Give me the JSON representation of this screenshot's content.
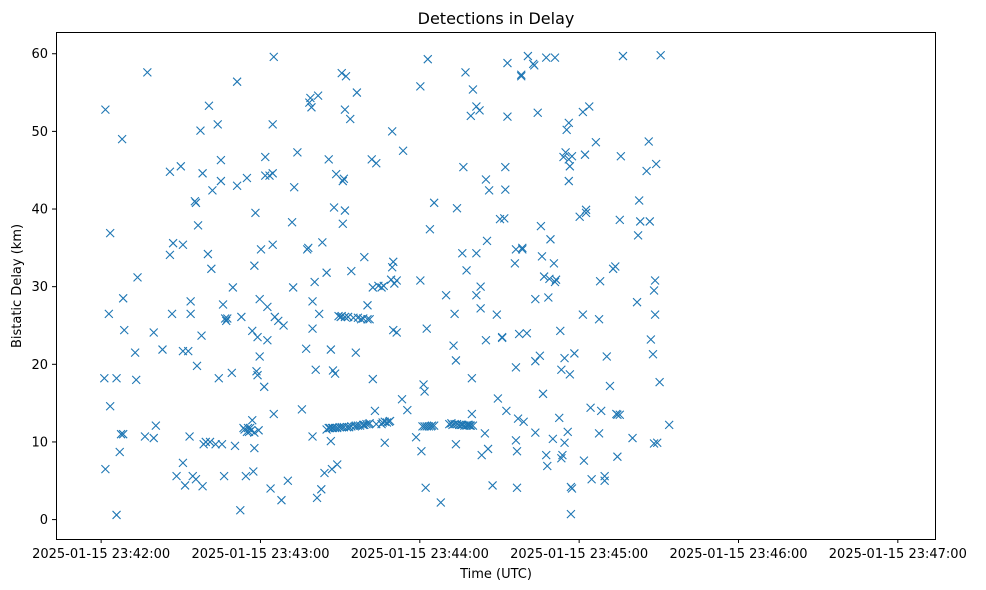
{
  "chart_data": {
    "type": "scatter",
    "title": "Detections in Delay",
    "xlabel": "Time (UTC)",
    "ylabel": "Bistatic Delay (km)",
    "x_unit": "seconds after 2025-01-15 23:42:00",
    "xlim": [
      -17,
      314
    ],
    "ylim": [
      -2.5,
      62.8
    ],
    "grid": false,
    "marker": "x",
    "color": "#1f77b4",
    "xticks": [
      {
        "value": 0,
        "label": "2025-01-15 23:42:00"
      },
      {
        "value": 60,
        "label": "2025-01-15 23:43:00"
      },
      {
        "value": 120,
        "label": "2025-01-15 23:44:00"
      },
      {
        "value": 180,
        "label": "2025-01-15 23:45:00"
      },
      {
        "value": 240,
        "label": "2025-01-15 23:46:00"
      },
      {
        "value": 300,
        "label": "2025-01-15 23:47:00"
      }
    ],
    "yticks": [
      0,
      10,
      20,
      30,
      40,
      50,
      60
    ],
    "points": [
      [
        1.6,
        52.8
      ],
      [
        1.2,
        18.2
      ],
      [
        1.6,
        6.5
      ],
      [
        2.9,
        26.5
      ],
      [
        3.4,
        14.6
      ],
      [
        3.4,
        36.9
      ],
      [
        5.8,
        18.2
      ],
      [
        5.8,
        0.6
      ],
      [
        7.0,
        8.7
      ],
      [
        7.5,
        11.0
      ],
      [
        7.9,
        49.0
      ],
      [
        8.3,
        28.5
      ],
      [
        8.3,
        11.0
      ],
      [
        8.7,
        24.4
      ],
      [
        12.8,
        21.5
      ],
      [
        13.2,
        18.0
      ],
      [
        13.7,
        31.2
      ],
      [
        16.5,
        10.7
      ],
      [
        17.4,
        57.6
      ],
      [
        19.8,
        24.1
      ],
      [
        19.8,
        10.5
      ],
      [
        20.6,
        12.1
      ],
      [
        23.1,
        21.9
      ],
      [
        25.9,
        34.1
      ],
      [
        25.9,
        44.8
      ],
      [
        26.7,
        26.5
      ],
      [
        27.1,
        35.6
      ],
      [
        28.4,
        5.6
      ],
      [
        30.0,
        45.5
      ],
      [
        30.8,
        7.3
      ],
      [
        30.8,
        35.4
      ],
      [
        30.8,
        21.7
      ],
      [
        31.6,
        4.4
      ],
      [
        32.8,
        21.7
      ],
      [
        33.3,
        10.7
      ],
      [
        33.7,
        26.5
      ],
      [
        33.7,
        28.1
      ],
      [
        34.5,
        5.6
      ],
      [
        35.3,
        41.0
      ],
      [
        35.7,
        40.8
      ],
      [
        35.7,
        5.2
      ],
      [
        36.1,
        19.8
      ],
      [
        36.5,
        37.9
      ],
      [
        37.4,
        50.1
      ],
      [
        37.8,
        23.7
      ],
      [
        38.2,
        44.6
      ],
      [
        38.2,
        4.3
      ],
      [
        38.6,
        9.7
      ],
      [
        39.4,
        10.0
      ],
      [
        40.2,
        34.2
      ],
      [
        40.6,
        53.3
      ],
      [
        41.0,
        10.0
      ],
      [
        41.5,
        32.3
      ],
      [
        41.9,
        42.4
      ],
      [
        43.1,
        9.7
      ],
      [
        43.9,
        50.9
      ],
      [
        44.3,
        18.2
      ],
      [
        45.1,
        46.3
      ],
      [
        45.1,
        43.6
      ],
      [
        45.5,
        9.7
      ],
      [
        45.9,
        27.7
      ],
      [
        46.3,
        5.6
      ],
      [
        46.7,
        25.9
      ],
      [
        47.1,
        25.6
      ],
      [
        47.5,
        25.9
      ],
      [
        49.2,
        18.9
      ],
      [
        49.6,
        29.9
      ],
      [
        50.4,
        9.5
      ],
      [
        51.2,
        43.0
      ],
      [
        51.2,
        56.4
      ],
      [
        52.4,
        1.2
      ],
      [
        52.8,
        26.1
      ],
      [
        53.6,
        11.8
      ],
      [
        54.0,
        11.6
      ],
      [
        54.5,
        5.6
      ],
      [
        54.9,
        44.0
      ],
      [
        54.9,
        11.3
      ],
      [
        55.3,
        11.8
      ],
      [
        55.7,
        11.3
      ],
      [
        56.1,
        11.8
      ],
      [
        56.5,
        11.5
      ],
      [
        56.9,
        12.8
      ],
      [
        56.9,
        24.3
      ],
      [
        57.3,
        6.2
      ],
      [
        57.7,
        32.7
      ],
      [
        57.7,
        11.2
      ],
      [
        57.7,
        9.2
      ],
      [
        58.1,
        39.5
      ],
      [
        58.5,
        19.1
      ],
      [
        58.9,
        23.5
      ],
      [
        58.9,
        18.6
      ],
      [
        59.3,
        11.5
      ],
      [
        59.7,
        21.0
      ],
      [
        59.7,
        28.4
      ],
      [
        60.2,
        34.8
      ],
      [
        61.4,
        17.1
      ],
      [
        61.8,
        46.7
      ],
      [
        61.8,
        44.3
      ],
      [
        62.6,
        27.4
      ],
      [
        62.6,
        23.1
      ],
      [
        63.4,
        44.3
      ],
      [
        63.8,
        4.0
      ],
      [
        64.6,
        44.6
      ],
      [
        64.6,
        50.9
      ],
      [
        64.6,
        35.4
      ],
      [
        65.0,
        13.6
      ],
      [
        65.0,
        59.6
      ],
      [
        65.4,
        26.1
      ],
      [
        66.7,
        25.6
      ],
      [
        67.9,
        2.5
      ],
      [
        68.7,
        25.0
      ],
      [
        70.3,
        5.0
      ],
      [
        71.9,
        38.3
      ],
      [
        72.3,
        29.9
      ],
      [
        72.7,
        42.8
      ],
      [
        73.9,
        47.3
      ],
      [
        75.6,
        14.2
      ],
      [
        77.2,
        22.0
      ],
      [
        77.6,
        34.8
      ],
      [
        78.0,
        35.0
      ],
      [
        78.4,
        53.7
      ],
      [
        78.8,
        54.3
      ],
      [
        79.2,
        53.1
      ],
      [
        79.6,
        10.7
      ],
      [
        79.6,
        24.6
      ],
      [
        79.6,
        28.1
      ],
      [
        80.4,
        30.6
      ],
      [
        80.8,
        19.3
      ],
      [
        81.3,
        2.8
      ],
      [
        81.7,
        54.6
      ],
      [
        82.1,
        26.5
      ],
      [
        82.9,
        3.9
      ],
      [
        83.3,
        35.7
      ],
      [
        84.1,
        6.0
      ],
      [
        84.9,
        11.6
      ],
      [
        84.9,
        31.8
      ],
      [
        85.7,
        11.8
      ],
      [
        85.7,
        46.4
      ],
      [
        86.1,
        11.8
      ],
      [
        86.5,
        21.9
      ],
      [
        86.5,
        10.1
      ],
      [
        86.9,
        11.8
      ],
      [
        86.9,
        6.5
      ],
      [
        87.3,
        11.8
      ],
      [
        87.3,
        19.2
      ],
      [
        87.7,
        40.2
      ],
      [
        88.1,
        11.8
      ],
      [
        88.1,
        18.8
      ],
      [
        88.5,
        44.5
      ],
      [
        88.9,
        11.8
      ],
      [
        88.9,
        7.1
      ],
      [
        89.4,
        26.2
      ],
      [
        89.8,
        11.9
      ],
      [
        90.2,
        26.1
      ],
      [
        90.6,
        11.9
      ],
      [
        90.6,
        57.5
      ],
      [
        90.6,
        26.2
      ],
      [
        91.0,
        38.1
      ],
      [
        91.0,
        43.6
      ],
      [
        91.4,
        43.9
      ],
      [
        91.4,
        11.9
      ],
      [
        91.8,
        52.8
      ],
      [
        91.8,
        39.8
      ],
      [
        91.8,
        26.1
      ],
      [
        92.2,
        57.1
      ],
      [
        92.6,
        11.9
      ],
      [
        93.0,
        26.1
      ],
      [
        93.4,
        11.9
      ],
      [
        93.8,
        51.6
      ],
      [
        94.2,
        12.0
      ],
      [
        94.2,
        32.0
      ],
      [
        95.0,
        26.0
      ],
      [
        95.5,
        12.0
      ],
      [
        95.9,
        12.1
      ],
      [
        95.9,
        21.5
      ],
      [
        96.3,
        55.0
      ],
      [
        96.7,
        12.1
      ],
      [
        96.7,
        26.0
      ],
      [
        97.5,
        12.1
      ],
      [
        97.9,
        25.8
      ],
      [
        98.7,
        12.2
      ],
      [
        98.7,
        25.9
      ],
      [
        99.1,
        12.2
      ],
      [
        99.1,
        33.8
      ],
      [
        99.9,
        12.3
      ],
      [
        100.3,
        25.8
      ],
      [
        100.3,
        27.6
      ],
      [
        100.7,
        12.3
      ],
      [
        101.1,
        12.4
      ],
      [
        101.1,
        25.8
      ],
      [
        101.9,
        46.4
      ],
      [
        102.3,
        29.9
      ],
      [
        102.3,
        18.1
      ],
      [
        103.1,
        14.0
      ],
      [
        103.6,
        45.9
      ],
      [
        103.6,
        12.3
      ],
      [
        104.4,
        30.1
      ],
      [
        105.6,
        29.9
      ],
      [
        105.6,
        12.3
      ],
      [
        106.0,
        12.5
      ],
      [
        106.4,
        30.1
      ],
      [
        106.8,
        12.6
      ],
      [
        106.8,
        9.9
      ],
      [
        107.6,
        12.5
      ],
      [
        108.4,
        12.6
      ],
      [
        108.8,
        12.7
      ],
      [
        109.2,
        30.9
      ],
      [
        109.6,
        32.5
      ],
      [
        109.6,
        50.0
      ],
      [
        110.0,
        24.4
      ],
      [
        110.0,
        33.2
      ],
      [
        110.4,
        30.4
      ],
      [
        111.3,
        30.8
      ],
      [
        111.3,
        24.1
      ],
      [
        113.3,
        15.5
      ],
      [
        113.7,
        47.5
      ],
      [
        115.3,
        14.1
      ],
      [
        118.6,
        10.6
      ],
      [
        120.2,
        30.8
      ],
      [
        120.2,
        55.8
      ],
      [
        120.6,
        8.8
      ],
      [
        121.0,
        12.0
      ],
      [
        121.4,
        17.4
      ],
      [
        121.8,
        12.0
      ],
      [
        121.8,
        16.5
      ],
      [
        122.2,
        4.1
      ],
      [
        122.6,
        12.0
      ],
      [
        122.6,
        24.6
      ],
      [
        123.0,
        59.3
      ],
      [
        123.4,
        12.0
      ],
      [
        123.8,
        37.4
      ],
      [
        124.2,
        12.0
      ],
      [
        124.6,
        12.1
      ],
      [
        125.4,
        40.8
      ],
      [
        125.4,
        12.1
      ],
      [
        127.9,
        2.2
      ],
      [
        129.9,
        28.9
      ],
      [
        131.1,
        12.3
      ],
      [
        131.9,
        12.4
      ],
      [
        132.3,
        12.2
      ],
      [
        132.7,
        22.4
      ],
      [
        133.1,
        26.5
      ],
      [
        133.1,
        12.3
      ],
      [
        133.6,
        9.7
      ],
      [
        133.6,
        20.5
      ],
      [
        134.0,
        12.3
      ],
      [
        134.0,
        40.1
      ],
      [
        134.8,
        12.2
      ],
      [
        135.6,
        12.2
      ],
      [
        136.0,
        34.3
      ],
      [
        136.0,
        12.2
      ],
      [
        136.4,
        45.4
      ],
      [
        136.8,
        12.1
      ],
      [
        137.2,
        57.6
      ],
      [
        137.6,
        12.1
      ],
      [
        137.6,
        32.1
      ],
      [
        138.0,
        12.2
      ],
      [
        138.4,
        12.2
      ],
      [
        138.8,
        12.1
      ],
      [
        139.2,
        12.1
      ],
      [
        139.2,
        52.0
      ],
      [
        139.6,
        13.6
      ],
      [
        139.6,
        18.2
      ],
      [
        140.0,
        55.4
      ],
      [
        140.0,
        12.1
      ],
      [
        141.3,
        34.3
      ],
      [
        141.3,
        28.9
      ],
      [
        141.3,
        53.2
      ],
      [
        142.5,
        52.7
      ],
      [
        142.9,
        27.2
      ],
      [
        142.9,
        30.0
      ],
      [
        143.3,
        8.3
      ],
      [
        144.5,
        11.1
      ],
      [
        144.9,
        43.8
      ],
      [
        144.9,
        23.1
      ],
      [
        145.3,
        35.9
      ],
      [
        145.7,
        9.1
      ],
      [
        146.1,
        42.4
      ],
      [
        147.4,
        4.4
      ],
      [
        149.0,
        26.4
      ],
      [
        149.4,
        15.6
      ],
      [
        150.2,
        38.7
      ],
      [
        151.0,
        23.5
      ],
      [
        151.0,
        23.4
      ],
      [
        151.8,
        38.8
      ],
      [
        152.2,
        45.4
      ],
      [
        152.2,
        42.5
      ],
      [
        152.6,
        14.0
      ],
      [
        153.0,
        58.8
      ],
      [
        153.0,
        51.9
      ],
      [
        155.8,
        33.0
      ],
      [
        156.2,
        34.8
      ],
      [
        156.2,
        10.2
      ],
      [
        156.2,
        19.6
      ],
      [
        156.6,
        4.1
      ],
      [
        156.6,
        8.8
      ],
      [
        157.0,
        13.0
      ],
      [
        157.4,
        23.9
      ],
      [
        158.2,
        57.3
      ],
      [
        158.2,
        57.1
      ],
      [
        158.6,
        35.0
      ],
      [
        158.6,
        34.8
      ],
      [
        159.1,
        12.6
      ],
      [
        160.3,
        24.0
      ],
      [
        160.7,
        59.7
      ],
      [
        162.7,
        58.7
      ],
      [
        163.1,
        58.5
      ],
      [
        163.5,
        11.2
      ],
      [
        163.5,
        20.4
      ],
      [
        163.5,
        28.4
      ],
      [
        164.4,
        52.4
      ],
      [
        165.2,
        21.1
      ],
      [
        165.6,
        37.8
      ],
      [
        166.0,
        33.9
      ],
      [
        166.4,
        16.2
      ],
      [
        166.8,
        31.3
      ],
      [
        167.6,
        59.5
      ],
      [
        167.6,
        8.3
      ],
      [
        168.0,
        6.9
      ],
      [
        168.4,
        28.6
      ],
      [
        168.8,
        31.0
      ],
      [
        169.2,
        36.1
      ],
      [
        170.1,
        10.4
      ],
      [
        170.5,
        33.0
      ],
      [
        170.9,
        59.5
      ],
      [
        170.9,
        30.6
      ],
      [
        171.3,
        30.9
      ],
      [
        172.5,
        13.1
      ],
      [
        172.9,
        24.3
      ],
      [
        173.3,
        19.3
      ],
      [
        173.3,
        7.9
      ],
      [
        173.7,
        8.3
      ],
      [
        174.1,
        46.7
      ],
      [
        174.5,
        20.8
      ],
      [
        174.5,
        9.9
      ],
      [
        174.9,
        47.3
      ],
      [
        175.3,
        50.2
      ],
      [
        175.7,
        11.3
      ],
      [
        176.1,
        51.1
      ],
      [
        176.1,
        46.4
      ],
      [
        176.1,
        43.6
      ],
      [
        176.5,
        45.5
      ],
      [
        176.5,
        18.7
      ],
      [
        176.9,
        4.2
      ],
      [
        176.9,
        0.7
      ],
      [
        177.3,
        46.8
      ],
      [
        177.3,
        4.0
      ],
      [
        178.2,
        21.4
      ],
      [
        180.2,
        39.0
      ],
      [
        181.4,
        52.5
      ],
      [
        181.4,
        26.4
      ],
      [
        181.8,
        7.6
      ],
      [
        182.2,
        47.0
      ],
      [
        182.6,
        39.5
      ],
      [
        182.6,
        39.9
      ],
      [
        183.8,
        53.2
      ],
      [
        184.3,
        14.4
      ],
      [
        184.7,
        5.2
      ],
      [
        186.3,
        48.6
      ],
      [
        187.5,
        11.1
      ],
      [
        187.5,
        25.8
      ],
      [
        187.9,
        30.7
      ],
      [
        188.3,
        14.0
      ],
      [
        189.6,
        5.6
      ],
      [
        189.6,
        5.0
      ],
      [
        190.4,
        21.0
      ],
      [
        191.6,
        17.2
      ],
      [
        192.8,
        32.3
      ],
      [
        193.6,
        32.6
      ],
      [
        194.0,
        13.6
      ],
      [
        194.4,
        8.1
      ],
      [
        194.4,
        13.5
      ],
      [
        195.3,
        38.6
      ],
      [
        195.3,
        13.5
      ],
      [
        195.7,
        46.8
      ],
      [
        196.5,
        59.7
      ],
      [
        200.1,
        10.5
      ],
      [
        201.8,
        28.0
      ],
      [
        202.2,
        36.6
      ],
      [
        202.6,
        41.1
      ],
      [
        203.0,
        38.4
      ],
      [
        205.4,
        44.9
      ],
      [
        206.2,
        48.7
      ],
      [
        206.6,
        38.4
      ],
      [
        207.0,
        23.2
      ],
      [
        207.8,
        21.3
      ],
      [
        208.2,
        29.5
      ],
      [
        208.2,
        9.8
      ],
      [
        208.6,
        30.8
      ],
      [
        208.6,
        26.4
      ],
      [
        209.0,
        45.8
      ],
      [
        209.4,
        9.9
      ],
      [
        210.3,
        17.7
      ],
      [
        210.7,
        59.8
      ],
      [
        213.9,
        12.2
      ]
    ]
  }
}
